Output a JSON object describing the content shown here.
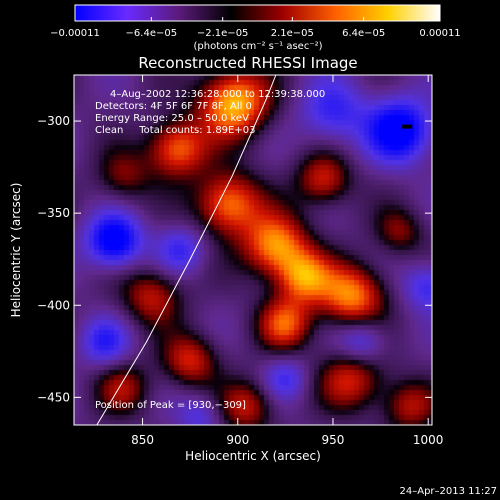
{
  "chart_data": {
    "type": "heatmap",
    "title": "Reconstructed RHESSI Image",
    "xlabel": "Heliocentric X (arcsec)",
    "ylabel": "Heliocentric Y (arcsec)",
    "xlim": [
      814,
      1002
    ],
    "ylim": [
      -465,
      -275
    ],
    "x_ticks": [
      850,
      900,
      950,
      1000
    ],
    "x_tick_labels": [
      "850",
      "900",
      "950",
      "1000"
    ],
    "y_ticks": [
      -300,
      -350,
      -400,
      -450
    ],
    "y_tick_labels": [
      "−300",
      "−350",
      "−400",
      "−450"
    ],
    "colorbar": {
      "range": [
        -0.00011,
        0.00011
      ],
      "tick_labels": [
        "−0.00011",
        "−6.4e−05",
        "−2.1e−05",
        "2.1e−05",
        "6.4e−05",
        "0.00011"
      ],
      "tick_values": [
        -0.00011,
        -6.4e-05,
        -2.1e-05,
        2.1e-05,
        6.4e-05,
        0.00011
      ],
      "unit_label": "(photons cm⁻² s⁻¹ asec⁻²)",
      "colors": [
        "#0000ff",
        "#6a2aff",
        "#5a1a7a",
        "#000000",
        "#a00000",
        "#ff6000",
        "#ffd000",
        "#ffffff"
      ]
    },
    "annotations": [
      "4–Aug–2002 12:36:28.000 to 12:39:38.000",
      "Detectors: 4F 5F 6F 7F 8F, All 0",
      "Energy Range: 25.0 – 50.0 keV",
      "Clean     Total counts: 1.89E+03"
    ],
    "peak_label": "Position of Peak = [930,−309]",
    "peak_position": [
      930,
      -309
    ],
    "limb_arc": [
      [
        826,
        -465
      ],
      [
        852,
        -420
      ],
      [
        875,
        -375
      ],
      [
        897,
        -330
      ],
      [
        915,
        -288
      ],
      [
        920,
        -275
      ]
    ],
    "sources": [
      {
        "x": 898,
        "y": -290,
        "amp": 1.0,
        "s": 13
      },
      {
        "x": 868,
        "y": -315,
        "amp": 0.8,
        "s": 11
      },
      {
        "x": 895,
        "y": -345,
        "amp": 0.85,
        "s": 12
      },
      {
        "x": 920,
        "y": -368,
        "amp": 0.9,
        "s": 12
      },
      {
        "x": 945,
        "y": -332,
        "amp": 0.6,
        "s": 10
      },
      {
        "x": 935,
        "y": -385,
        "amp": 0.75,
        "s": 10
      },
      {
        "x": 960,
        "y": -395,
        "amp": 0.85,
        "s": 12
      },
      {
        "x": 925,
        "y": -410,
        "amp": 0.7,
        "s": 10
      },
      {
        "x": 855,
        "y": -395,
        "amp": 0.55,
        "s": 11
      },
      {
        "x": 875,
        "y": -430,
        "amp": 0.6,
        "s": 10
      },
      {
        "x": 840,
        "y": -445,
        "amp": 0.45,
        "s": 10
      },
      {
        "x": 905,
        "y": -455,
        "amp": 0.55,
        "s": 10
      },
      {
        "x": 960,
        "y": -440,
        "amp": 0.6,
        "s": 12
      },
      {
        "x": 990,
        "y": -455,
        "amp": 0.5,
        "s": 10
      },
      {
        "x": 985,
        "y": -360,
        "amp": 0.4,
        "s": 9
      },
      {
        "x": 840,
        "y": -330,
        "amp": 0.4,
        "s": 10
      },
      {
        "x": 835,
        "y": -365,
        "amp": -0.9,
        "s": 10
      },
      {
        "x": 985,
        "y": -305,
        "amp": -0.9,
        "s": 12
      },
      {
        "x": 950,
        "y": -295,
        "amp": -0.5,
        "s": 12
      },
      {
        "x": 870,
        "y": -370,
        "amp": -0.45,
        "s": 9
      },
      {
        "x": 965,
        "y": -420,
        "amp": -0.5,
        "s": 9
      },
      {
        "x": 830,
        "y": -420,
        "amp": -0.5,
        "s": 9
      },
      {
        "x": 880,
        "y": -460,
        "amp": -0.35,
        "s": 8
      },
      {
        "x": 925,
        "y": -440,
        "amp": -0.4,
        "s": 8
      },
      {
        "x": 1000,
        "y": -390,
        "amp": -0.5,
        "s": 9
      }
    ],
    "grid": false
  },
  "footer": {
    "timestamp": "24–Apr–2013 11:27"
  }
}
